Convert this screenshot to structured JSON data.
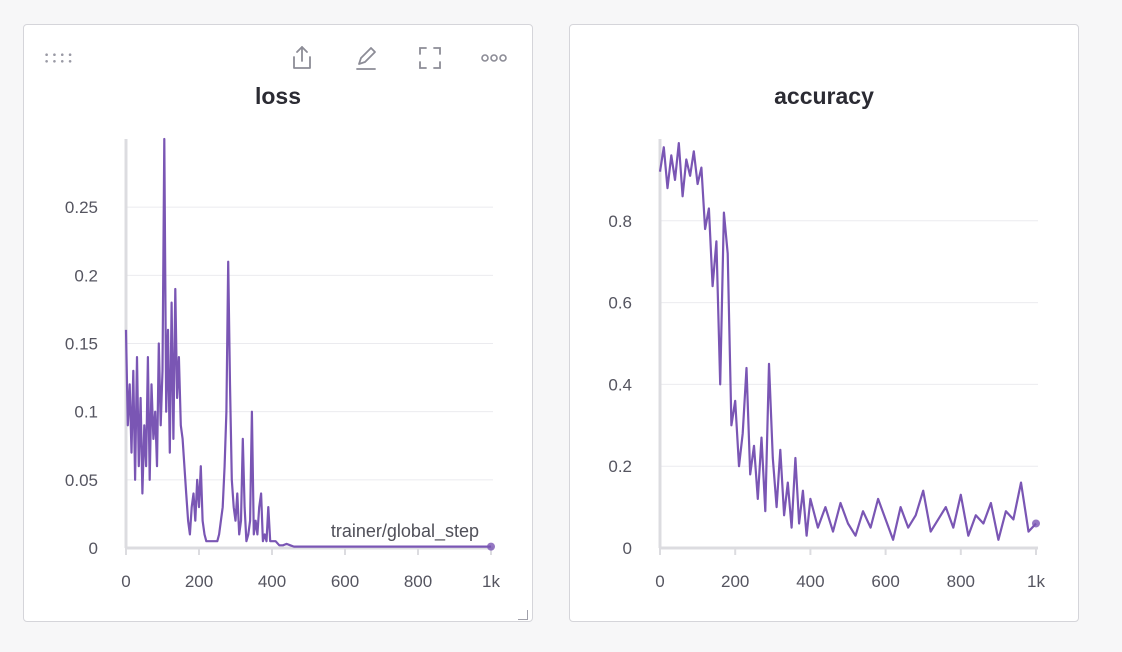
{
  "panels": [
    {
      "title": "loss",
      "toolbar": [
        "share-icon",
        "edit-icon",
        "fullscreen-icon",
        "more-icon"
      ],
      "hover_label": "trainer/global_step"
    },
    {
      "title": "accuracy"
    }
  ],
  "colors": {
    "series": "#7a56b4",
    "grid": "#ebebef",
    "axis": "#dcdce0",
    "tick_text": "#555560"
  },
  "chart_data": [
    {
      "type": "line",
      "title": "loss",
      "xlabel": "trainer/global_step",
      "ylabel": "",
      "xlim": [
        0,
        1000
      ],
      "ylim": [
        0,
        0.3
      ],
      "x_ticks": [
        0,
        200,
        400,
        600,
        800,
        1000
      ],
      "x_tick_labels": [
        "0",
        "200",
        "400",
        "600",
        "800",
        "1k"
      ],
      "y_ticks": [
        0,
        0.05,
        0.1,
        0.15,
        0.2,
        0.25
      ],
      "y_tick_labels": [
        "0",
        "0.05",
        "0.1",
        "0.15",
        "0.2",
        "0.25"
      ],
      "grid": true,
      "series": [
        {
          "x": [
            0,
            5,
            10,
            15,
            20,
            25,
            30,
            35,
            40,
            45,
            50,
            55,
            60,
            65,
            70,
            75,
            80,
            85,
            90,
            95,
            100,
            105,
            110,
            115,
            120,
            125,
            130,
            135,
            140,
            145,
            150,
            155,
            160,
            165,
            170,
            175,
            180,
            185,
            190,
            195,
            200,
            205,
            210,
            215,
            220,
            225,
            230,
            235,
            240,
            245,
            250,
            255,
            260,
            265,
            270,
            275,
            280,
            285,
            290,
            295,
            300,
            305,
            310,
            315,
            320,
            325,
            330,
            335,
            340,
            345,
            350,
            355,
            360,
            365,
            370,
            375,
            380,
            385,
            390,
            395,
            400,
            410,
            420,
            430,
            440,
            450,
            460,
            470,
            480,
            500,
            550,
            600,
            700,
            800,
            900,
            1000
          ],
          "y": [
            0.16,
            0.09,
            0.12,
            0.07,
            0.13,
            0.05,
            0.14,
            0.06,
            0.11,
            0.04,
            0.09,
            0.06,
            0.14,
            0.05,
            0.12,
            0.08,
            0.1,
            0.06,
            0.15,
            0.09,
            0.13,
            0.3,
            0.1,
            0.16,
            0.07,
            0.18,
            0.08,
            0.19,
            0.11,
            0.14,
            0.09,
            0.08,
            0.06,
            0.04,
            0.02,
            0.01,
            0.03,
            0.04,
            0.02,
            0.05,
            0.03,
            0.06,
            0.02,
            0.01,
            0.005,
            0.005,
            0.005,
            0.005,
            0.005,
            0.005,
            0.005,
            0.01,
            0.02,
            0.03,
            0.06,
            0.1,
            0.21,
            0.12,
            0.05,
            0.03,
            0.02,
            0.04,
            0.01,
            0.02,
            0.08,
            0.03,
            0.005,
            0.01,
            0.02,
            0.1,
            0.01,
            0.02,
            0.01,
            0.03,
            0.04,
            0.005,
            0.01,
            0.005,
            0.03,
            0.005,
            0.005,
            0.005,
            0.002,
            0.002,
            0.003,
            0.002,
            0.001,
            0.001,
            0.001,
            0.001,
            0.001,
            0.001,
            0.001,
            0.001,
            0.001,
            0.001
          ]
        }
      ]
    },
    {
      "type": "line",
      "title": "accuracy",
      "xlabel": "",
      "ylabel": "",
      "xlim": [
        0,
        1000
      ],
      "ylim": [
        0,
        1.0
      ],
      "x_ticks": [
        0,
        200,
        400,
        600,
        800,
        1000
      ],
      "x_tick_labels": [
        "0",
        "200",
        "400",
        "600",
        "800",
        "1k"
      ],
      "y_ticks": [
        0,
        0.2,
        0.4,
        0.6,
        0.8
      ],
      "y_tick_labels": [
        "0",
        "0.2",
        "0.4",
        "0.6",
        "0.8"
      ],
      "grid": true,
      "series": [
        {
          "x": [
            0,
            10,
            20,
            30,
            40,
            50,
            60,
            70,
            80,
            90,
            100,
            110,
            120,
            130,
            140,
            150,
            160,
            170,
            180,
            190,
            200,
            210,
            220,
            230,
            240,
            250,
            260,
            270,
            280,
            290,
            300,
            310,
            320,
            330,
            340,
            350,
            360,
            370,
            380,
            390,
            400,
            420,
            440,
            460,
            480,
            500,
            520,
            540,
            560,
            580,
            600,
            620,
            640,
            660,
            680,
            700,
            720,
            740,
            760,
            780,
            800,
            820,
            840,
            860,
            880,
            900,
            920,
            940,
            960,
            980,
            1000
          ],
          "y": [
            0.92,
            0.98,
            0.88,
            0.96,
            0.9,
            0.99,
            0.86,
            0.95,
            0.91,
            0.97,
            0.89,
            0.93,
            0.78,
            0.83,
            0.64,
            0.75,
            0.4,
            0.82,
            0.72,
            0.3,
            0.36,
            0.2,
            0.28,
            0.44,
            0.18,
            0.25,
            0.12,
            0.27,
            0.09,
            0.45,
            0.22,
            0.1,
            0.24,
            0.08,
            0.16,
            0.05,
            0.22,
            0.06,
            0.14,
            0.03,
            0.12,
            0.05,
            0.1,
            0.04,
            0.11,
            0.06,
            0.03,
            0.09,
            0.05,
            0.12,
            0.07,
            0.02,
            0.1,
            0.05,
            0.08,
            0.14,
            0.04,
            0.07,
            0.1,
            0.05,
            0.13,
            0.03,
            0.08,
            0.06,
            0.11,
            0.02,
            0.09,
            0.07,
            0.16,
            0.04,
            0.06
          ]
        }
      ]
    }
  ]
}
